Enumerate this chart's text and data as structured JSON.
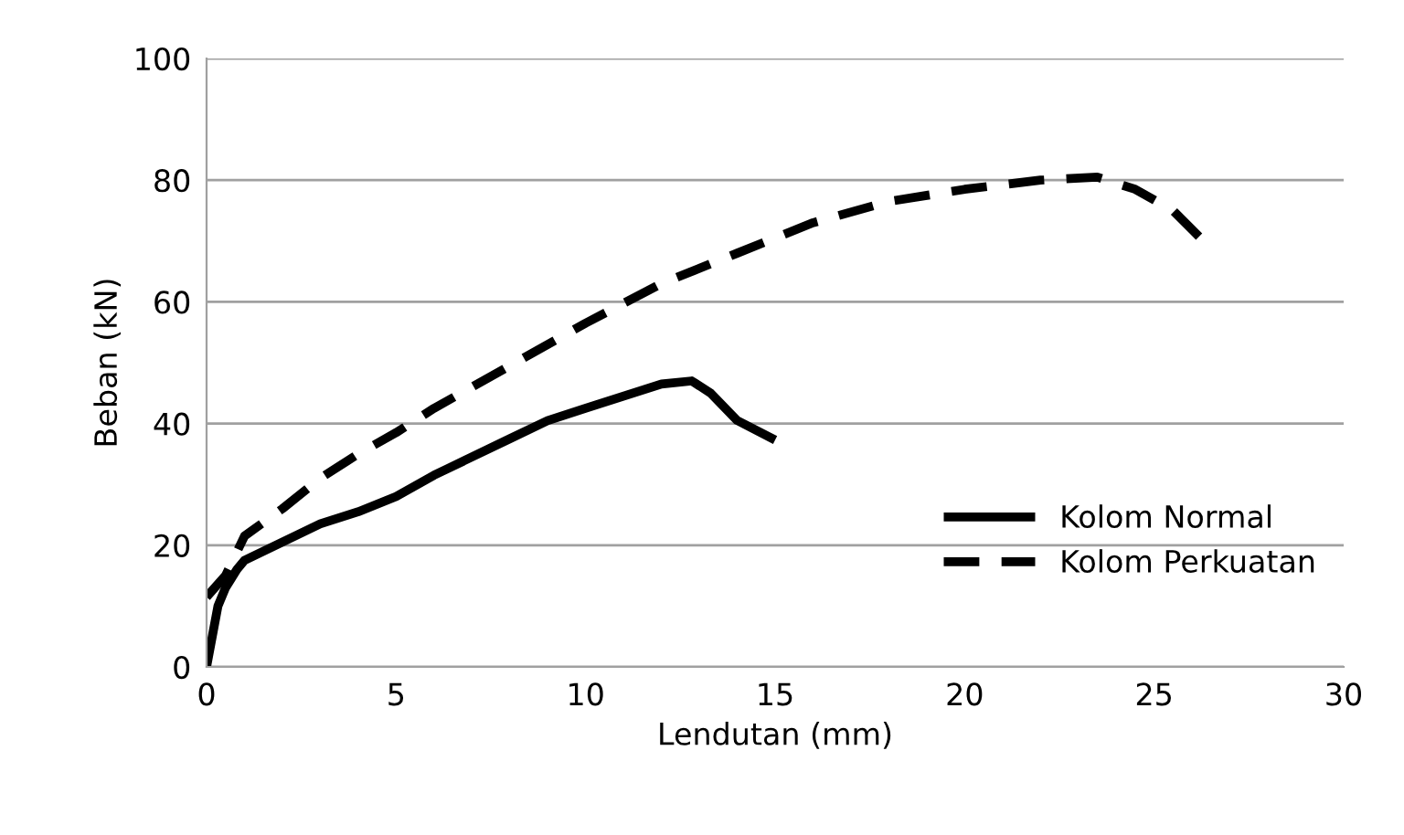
{
  "chart_data": {
    "type": "line",
    "xlabel": "Lendutan (mm)",
    "ylabel": "Beban (kN)",
    "xlim": [
      0,
      30
    ],
    "ylim": [
      0,
      100
    ],
    "xticks": [
      0,
      5,
      10,
      15,
      20,
      25,
      30
    ],
    "yticks": [
      0,
      20,
      40,
      60,
      80,
      100
    ],
    "grid": "y",
    "legend": "bottom right",
    "series": [
      {
        "name": "Kolom Normal",
        "color": "#000000",
        "line_style": "solid",
        "x": [
          0,
          0.3,
          0.5,
          0.8,
          1,
          2,
          3,
          4,
          5,
          6,
          8,
          9,
          10,
          11,
          12,
          12.8,
          13.3,
          14,
          15
        ],
        "values": [
          0,
          10,
          13,
          16,
          17.5,
          20.5,
          23.5,
          25.5,
          28,
          31.5,
          37.5,
          40.5,
          42.5,
          44.5,
          46.5,
          47,
          45,
          40.5,
          37.3
        ]
      },
      {
        "name": "Kolom Perkuatan",
        "color": "#000000",
        "line_style": "dashed",
        "x": [
          0,
          0.5,
          1,
          2,
          3,
          4,
          5,
          6,
          8,
          10,
          12,
          14,
          16,
          18,
          20,
          22,
          23.5,
          24.5,
          25.5,
          26.3
        ],
        "values": [
          11.5,
          15,
          21.5,
          26,
          31,
          35,
          38.5,
          42.5,
          49.5,
          56.5,
          63,
          68,
          73,
          76.5,
          78.5,
          80,
          80.5,
          78.5,
          75,
          70
        ]
      }
    ]
  }
}
